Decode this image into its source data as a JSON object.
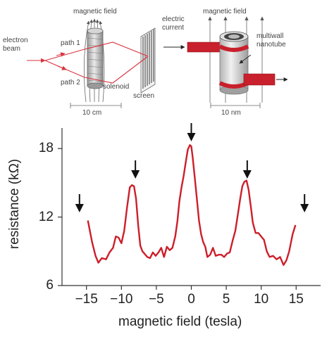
{
  "diagram": {
    "left_labels": {
      "magnetic_field": "magnetic field",
      "electron_beam": "electron beam",
      "path1": "path 1",
      "path2": "path 2",
      "solenoid": "solenoid",
      "screen": "screen",
      "scale": "10 cm"
    },
    "right_labels": {
      "electric_current": "electric current",
      "magnetic_field": "magnetic field",
      "multiwall_nanotube": "multiwall nanotube",
      "scale": "10 nm"
    }
  },
  "colors": {
    "curve": "#cc1f2a",
    "beam": "#d9333e",
    "wire": "#c8202c",
    "field_lines": "#666666"
  },
  "chart_data": {
    "type": "line",
    "title": "",
    "xlabel": "magnetic field (tesla)",
    "ylabel": "resistance (kΩ)",
    "xlim": [
      -18.5,
      18.5
    ],
    "ylim": [
      6,
      19.8
    ],
    "xticks": [
      -15,
      -10,
      -5,
      0,
      5,
      10,
      15
    ],
    "xtick_labels": [
      "−15",
      "−10",
      "−5",
      "0",
      "5",
      "10",
      "15"
    ],
    "yticks": [
      6,
      12,
      18
    ],
    "ytick_labels": [
      "6",
      "12",
      "18"
    ],
    "grid": false,
    "series": [
      {
        "x": [
          -14.8,
          -14.2,
          -13.7,
          -13.3,
          -12.8,
          -12.2,
          -11.7,
          -11.2,
          -10.8,
          -10.4,
          -10.0,
          -9.6,
          -9.2,
          -8.8,
          -8.5,
          -8.2,
          -7.9,
          -7.6,
          -7.3,
          -7.0,
          -6.7,
          -6.3,
          -5.9,
          -5.5,
          -5.1,
          -4.7,
          -4.3,
          -3.9,
          -3.5,
          -3.1,
          -2.7,
          -2.3,
          -2.0,
          -1.7,
          -1.4,
          -1.1,
          -0.8,
          -0.5,
          -0.2,
          0.0,
          0.2,
          0.5,
          0.8,
          1.1,
          1.4,
          1.7,
          2.0,
          2.3,
          2.7,
          3.1,
          3.5,
          3.9,
          4.3,
          4.7,
          5.1,
          5.5,
          5.9,
          6.3,
          6.7,
          7.0,
          7.3,
          7.6,
          7.9,
          8.2,
          8.5,
          8.8,
          9.2,
          9.6,
          10.0,
          10.4,
          10.8,
          11.2,
          11.7,
          12.2,
          12.7,
          13.2,
          13.6,
          14.0,
          14.5,
          14.9
        ],
        "y": [
          11.7,
          9.8,
          8.6,
          8.0,
          8.4,
          8.3,
          8.9,
          9.3,
          10.3,
          10.2,
          9.7,
          10.8,
          12.8,
          14.6,
          14.8,
          14.7,
          13.6,
          11.3,
          9.5,
          9.0,
          8.8,
          8.5,
          8.4,
          8.9,
          8.6,
          8.9,
          9.3,
          8.5,
          9.4,
          9.1,
          9.3,
          10.3,
          11.6,
          13.4,
          14.6,
          15.6,
          16.8,
          17.9,
          18.3,
          18.2,
          17.2,
          15.4,
          13.6,
          11.7,
          10.5,
          9.8,
          9.4,
          8.5,
          8.7,
          9.3,
          8.6,
          8.7,
          8.7,
          8.5,
          8.8,
          8.9,
          9.9,
          10.8,
          12.4,
          13.6,
          14.7,
          15.1,
          15.2,
          14.4,
          13.0,
          11.5,
          10.6,
          10.6,
          10.3,
          10.0,
          9.0,
          8.5,
          8.6,
          8.3,
          8.5,
          7.8,
          8.2,
          9.0,
          10.5,
          11.3
        ]
      }
    ],
    "arrows_at_x": [
      -16.0,
      -8.0,
      0.0,
      8.0,
      16.2
    ]
  }
}
